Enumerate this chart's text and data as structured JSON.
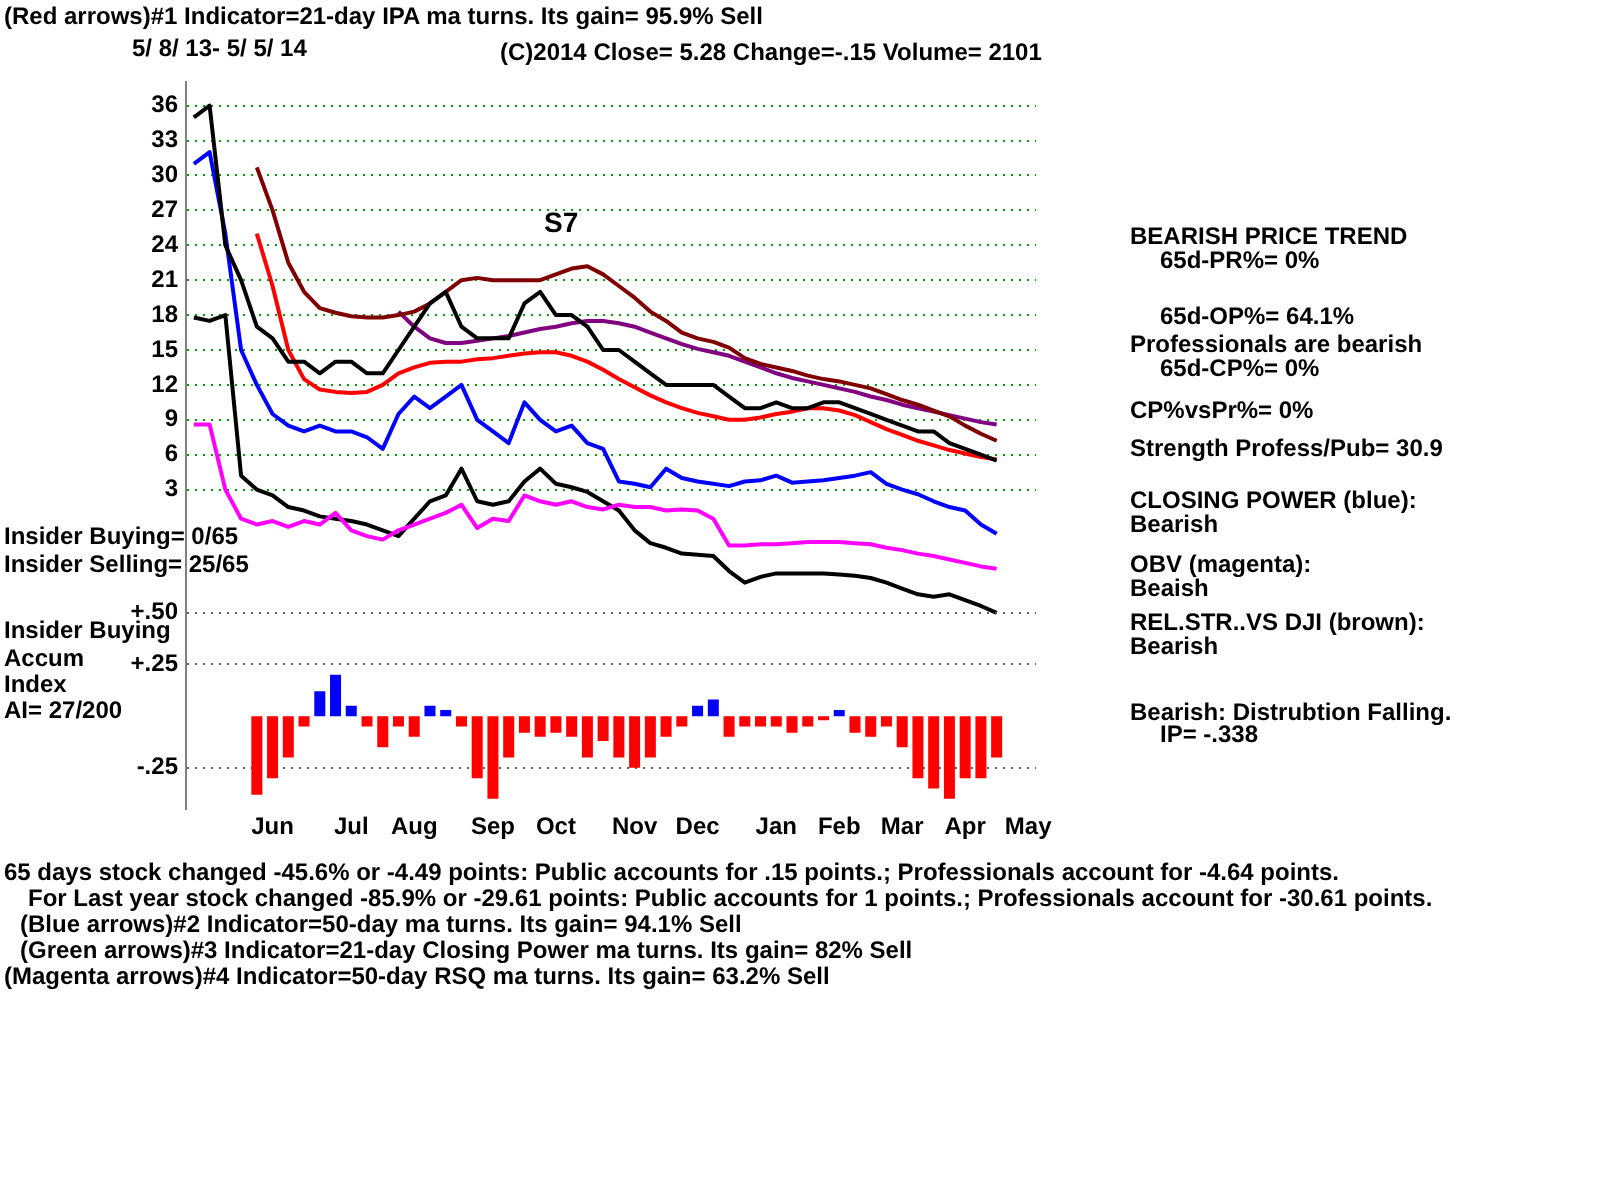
{
  "chart_data": [
    {
      "type": "line",
      "title": "(Red arrows)#1 Indicator=21-day IPA ma turns. Its gain= 95.9% Sell",
      "subtitle": "(C)2014   Close=  5.28   Change=-.15 Volume= 2101",
      "categories": [
        null,
        null,
        null,
        null,
        null,
        null,
        null,
        null,
        null,
        null,
        null,
        null,
        null,
        null,
        null,
        null,
        null,
        null,
        null,
        null,
        null,
        null,
        null,
        null,
        null,
        null,
        null,
        null,
        null,
        null,
        null,
        null,
        null,
        null,
        null,
        null,
        null,
        null,
        null,
        null,
        null,
        null,
        null,
        null,
        null,
        null,
        null,
        null,
        null,
        null,
        null,
        null,
        null,
        null
      ],
      "series": [
        {
          "color": "#000000",
          "values": [
            35,
            36,
            24,
            21,
            17,
            16,
            14,
            14,
            13,
            14,
            14,
            13,
            13,
            15,
            17,
            19,
            20,
            17,
            16,
            16,
            16,
            19,
            20,
            18,
            18,
            17,
            15,
            15,
            14,
            13,
            12,
            12,
            12,
            12,
            11,
            10,
            10,
            10.5,
            10,
            10,
            10.5,
            10.5,
            10,
            9.5,
            9,
            8.5,
            8,
            8,
            7,
            6.5,
            6,
            5.5,
            null,
            null
          ]
        },
        {
          "color": "#800000",
          "values": [
            null,
            null,
            null,
            null,
            30.7,
            27,
            22.5,
            20,
            18.6,
            18.2,
            17.9,
            17.8,
            17.8,
            18,
            18.3,
            19,
            20,
            21,
            21.2,
            21,
            21,
            21,
            21,
            21.5,
            22,
            22.2,
            21.5,
            20.5,
            19.5,
            18.3,
            17.5,
            16.5,
            16,
            15.7,
            15.2,
            14.3,
            13.8,
            13.5,
            13.2,
            12.8,
            12.5,
            12.3,
            12,
            11.7,
            11.2,
            10.7,
            10.3,
            9.8,
            9.3,
            8.5,
            7.8,
            7.2,
            null,
            null
          ]
        },
        {
          "color": "#ff0000",
          "values": [
            null,
            null,
            null,
            null,
            25,
            20.5,
            15,
            12.5,
            11.6,
            11.4,
            11.3,
            11.4,
            12,
            13,
            13.5,
            13.9,
            14,
            14,
            14.2,
            14.3,
            14.5,
            14.7,
            14.8,
            14.8,
            14.5,
            14,
            13.3,
            12.5,
            11.8,
            11.1,
            10.5,
            10,
            9.6,
            9.3,
            9,
            9,
            9.2,
            9.5,
            9.7,
            10,
            10,
            9.8,
            9.4,
            8.8,
            8.2,
            7.7,
            7.2,
            6.8,
            6.4,
            6.1,
            5.8,
            5.6,
            null,
            null
          ]
        },
        {
          "color": "#800080",
          "values": [
            null,
            null,
            null,
            null,
            null,
            null,
            null,
            null,
            null,
            null,
            null,
            null,
            null,
            18.3,
            17,
            16,
            15.6,
            15.6,
            15.8,
            16,
            16.2,
            16.5,
            16.8,
            17,
            17.3,
            17.5,
            17.5,
            17.3,
            17,
            16.5,
            16,
            15.5,
            15.1,
            14.8,
            14.5,
            14,
            13.5,
            13,
            12.6,
            12.3,
            12,
            11.7,
            11.4,
            11,
            10.7,
            10.3,
            10,
            9.7,
            9.4,
            9.1,
            8.8,
            8.6,
            null,
            null
          ]
        },
        {
          "color": "#0000ff",
          "values": [
            31,
            32,
            25,
            15,
            12,
            9.5,
            8.5,
            8,
            8.5,
            8,
            8,
            7.5,
            6.5,
            9.5,
            11,
            10,
            11,
            12,
            9,
            8,
            7,
            10.5,
            9,
            8,
            8.5,
            7,
            6.5,
            3.7,
            3.5,
            3.2,
            4.8,
            4,
            3.7,
            3.5,
            3.3,
            3.7,
            3.8,
            4.2,
            3.6,
            3.7,
            3.8,
            4,
            4.2,
            4.5,
            3.5,
            3,
            2.6,
            2,
            1.5,
            1.2,
            0,
            -0.8,
            null,
            null
          ]
        },
        {
          "color": "#ff00ff",
          "values": [
            8.6,
            8.6,
            3,
            0.5,
            0,
            0.3,
            -0.2,
            0.3,
            0,
            1,
            -0.5,
            -1,
            -1.3,
            -0.5,
            0,
            0.5,
            1,
            1.7,
            -0.3,
            0.5,
            0.3,
            2.5,
            2,
            1.7,
            2,
            1.5,
            1.3,
            1.7,
            1.5,
            1.5,
            1.2,
            1.3,
            1.2,
            0.5,
            -1.8,
            -1.8,
            -1.7,
            -1.7,
            -1.6,
            -1.5,
            -1.5,
            -1.5,
            -1.6,
            -1.7,
            -2,
            -2.2,
            -2.5,
            -2.7,
            -3,
            -3.3,
            -3.6,
            -3.8,
            null,
            null
          ]
        },
        {
          "color": "#000000",
          "values": [
            17.8,
            17.5,
            18,
            4.2,
            3,
            2.5,
            1.5,
            1.2,
            0.7,
            0.5,
            0.3,
            0,
            -0.5,
            -1,
            0.5,
            2,
            2.5,
            4.8,
            2,
            1.7,
            2,
            3.7,
            4.8,
            3.5,
            3.2,
            2.8,
            2,
            1.2,
            -0.5,
            -1.6,
            -2,
            -2.5,
            -2.6,
            -2.7,
            -4,
            -5,
            -4.5,
            -4.2,
            -4.2,
            -4.2,
            -4.2,
            -4.3,
            -4.4,
            -4.6,
            -5,
            -5.5,
            -6,
            -6.2,
            -6,
            -6.5,
            -7,
            -7.6,
            null,
            null
          ]
        }
      ],
      "ylim": [
        -8,
        38
      ],
      "yticks": [
        3,
        6,
        9,
        12,
        15,
        18,
        21,
        24,
        27,
        30,
        33,
        36
      ],
      "grid": "y",
      "tick_labels": "y",
      "marker": "none",
      "line_style": "solid",
      "legend": false,
      "annotations": [
        "5/ 8/ 13- 5/ 5/ 14",
        "BEARISH PRICE TREND",
        "65d-PR%= 0%",
        "65d-OP%= 64.1%",
        "Professionals are bearish",
        "65d-CP%= 0%",
        "CP%vsPr%=  0%",
        "Strength Profess/Pub= 30.9",
        "CLOSING POWER (blue):",
        "Bearish",
        "OBV (magenta):",
        "Beaish",
        "REL.STR..VS DJI (brown):",
        "Bearish",
        "Bearish: Distrubtion Falling.",
        "IP= -.338",
        "Insider Buying= 0/65",
        "Insider Selling= 25/65",
        "65 days stock changed -45.6% or -4.49 points:  Public accounts for  .15 points.;  Professionals account for -4.64 points.",
        "For Last year stock changed -85.9% or -29.61 points:  Public accounts for  1 points.;  Professionals account for -30.61 points.",
        "(Blue arrows)#2 Indicator=50-day ma turns. Its gain= 94.1% Sell",
        "(Green arrows)#3 Indicator=21-day Closing Power ma turns. Its gain= 82% Sell",
        "(Magenta arrows)#4 Indicator=50-day RSQ ma turns. Its gain= 63.2% Sell",
        "S7"
      ]
    },
    {
      "type": "bar",
      "categories": [
        null,
        null,
        null,
        null,
        null,
        "Jun",
        null,
        null,
        null,
        null,
        "Jul",
        null,
        null,
        null,
        "Aug",
        null,
        null,
        null,
        null,
        "Sep",
        null,
        null,
        null,
        "Oct",
        null,
        null,
        null,
        null,
        "Nov",
        null,
        null,
        null,
        "Dec",
        null,
        null,
        null,
        null,
        "Jan",
        null,
        null,
        null,
        "Feb",
        null,
        null,
        null,
        "Mar",
        null,
        null,
        null,
        "Apr",
        null,
        null,
        null,
        "May"
      ],
      "values": [
        null,
        null,
        null,
        null,
        -0.38,
        -0.3,
        -0.2,
        -0.05,
        0.12,
        0.2,
        0.05,
        -0.05,
        -0.15,
        -0.05,
        -0.1,
        0.05,
        0.03,
        -0.05,
        -0.3,
        -0.4,
        -0.2,
        -0.08,
        -0.1,
        -0.08,
        -0.1,
        -0.2,
        -0.12,
        -0.2,
        -0.25,
        -0.2,
        -0.1,
        -0.05,
        0.05,
        0.08,
        -0.1,
        -0.05,
        -0.05,
        -0.05,
        -0.08,
        -0.05,
        -0.02,
        0.03,
        -0.08,
        -0.1,
        -0.05,
        -0.15,
        -0.3,
        -0.35,
        -0.4,
        -0.3,
        -0.3,
        -0.2,
        null,
        null
      ],
      "colors": [
        "#ff0000",
        "#ff0000",
        "#ff0000",
        "#ff0000",
        "#ff0000",
        "#ff0000",
        "#ff0000",
        "#ff0000",
        "#0000ff",
        "#0000ff",
        "#0000ff",
        "#ff0000",
        "#ff0000",
        "#ff0000",
        "#ff0000",
        "#0000ff",
        "#0000ff",
        "#ff0000",
        "#ff0000",
        "#ff0000",
        "#ff0000",
        "#ff0000",
        "#ff0000",
        "#ff0000",
        "#ff0000",
        "#ff0000",
        "#ff0000",
        "#ff0000",
        "#ff0000",
        "#ff0000",
        "#ff0000",
        "#ff0000",
        "#0000ff",
        "#0000ff",
        "#ff0000",
        "#ff0000",
        "#ff0000",
        "#ff0000",
        "#ff0000",
        "#ff0000",
        "#ff0000",
        "#0000ff",
        "#ff0000",
        "#ff0000",
        "#ff0000",
        "#ff0000",
        "#ff0000",
        "#ff0000",
        "#ff0000",
        "#ff0000",
        "#ff0000",
        "#ff0000",
        "#ff0000",
        "#ff0000"
      ],
      "ylim": [
        -0.45,
        0.55
      ],
      "yticks": [
        {
          "value": 0.5,
          "label": "+.50"
        },
        {
          "value": 0.25,
          "label": "+.25"
        },
        {
          "value": -0.25,
          "label": "-.25"
        }
      ],
      "grid": "y",
      "legend": false,
      "annotations": [
        "Insider Buying",
        "Accum",
        "Index",
        "AI= 27/200"
      ]
    }
  ]
}
